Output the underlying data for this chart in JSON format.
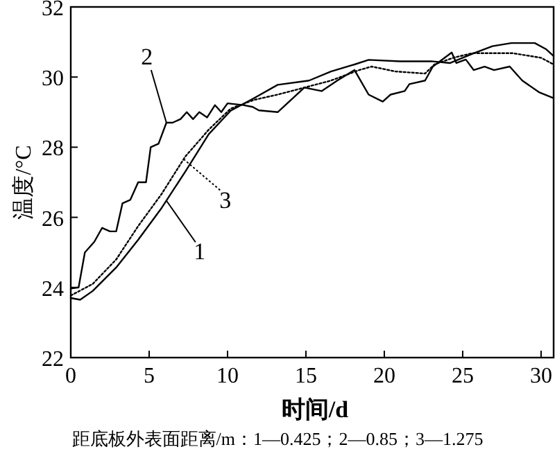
{
  "chart_data": {
    "type": "line",
    "xlabel": "时间/d",
    "ylabel": "温度/°C",
    "xlim": [
      0,
      30.8
    ],
    "xticks": [
      0,
      5,
      10,
      15,
      20,
      25,
      30
    ],
    "ylim": [
      22,
      32
    ],
    "yticks": [
      22,
      24,
      26,
      28,
      30,
      32
    ],
    "grid": false,
    "legend": "left",
    "marker": "none",
    "series": [
      {
        "name": "1",
        "color": "#000000",
        "line_style": "solid",
        "x": [
          0,
          0.6,
          1.4,
          2.9,
          4.3,
          5.8,
          7.3,
          8.8,
          10.2,
          11.7,
          13.2,
          15.2,
          16.6,
          18.1,
          19,
          21,
          23,
          24.2,
          25.7,
          26.9,
          28.1,
          29.6,
          30.3,
          30.8
        ],
        "values": [
          23.7,
          23.65,
          23.9,
          24.57,
          25.36,
          26.27,
          27.3,
          28.37,
          29.04,
          29.4,
          29.78,
          29.9,
          30.16,
          30.36,
          30.49,
          30.45,
          30.45,
          30.4,
          30.68,
          30.88,
          30.97,
          30.97,
          30.8,
          30.6
        ]
      },
      {
        "name": "2",
        "color": "#000000",
        "line_style": "solid",
        "x": [
          0,
          0.5,
          0.9,
          1.5,
          2,
          2.5,
          2.9,
          3.3,
          3.8,
          4.3,
          4.8,
          5.1,
          5.6,
          6.1,
          6.5,
          7,
          7.4,
          7.8,
          8.2,
          8.7,
          9.2,
          9.6,
          10,
          11,
          11.6,
          12,
          13.2,
          14.9,
          16,
          17,
          18.1,
          19,
          19.9,
          20.4,
          21.3,
          21.6,
          22.6,
          23.1,
          24.3,
          24.6,
          25.2,
          25.7,
          26.4,
          27,
          28,
          28.8,
          29.9,
          30.8
        ],
        "values": [
          23.97,
          24.0,
          25.0,
          25.3,
          25.7,
          25.6,
          25.6,
          26.4,
          26.5,
          27.0,
          27.0,
          28.0,
          28.1,
          28.7,
          28.7,
          28.8,
          29.0,
          28.8,
          29.0,
          28.85,
          29.2,
          29.0,
          29.25,
          29.2,
          29.15,
          29.05,
          29.0,
          29.7,
          29.6,
          29.9,
          30.2,
          29.5,
          29.3,
          29.5,
          29.6,
          29.8,
          29.9,
          30.3,
          30.7,
          30.4,
          30.5,
          30.2,
          30.3,
          30.2,
          30.3,
          29.9,
          29.56,
          29.4
        ]
      },
      {
        "name": "3",
        "color": "#000000",
        "line_style": "dotted",
        "x": [
          0,
          1.4,
          2.9,
          4.3,
          5.8,
          7.3,
          8.8,
          10.2,
          11.7,
          13.2,
          14.9,
          16.6,
          18.4,
          19.2,
          20.7,
          22.6,
          23.2,
          24.4,
          25.6,
          28.2,
          30,
          30.8
        ],
        "values": [
          23.77,
          24.1,
          24.8,
          25.75,
          26.67,
          27.73,
          28.5,
          29.1,
          29.35,
          29.5,
          29.7,
          29.9,
          30.2,
          30.3,
          30.16,
          30.1,
          30.36,
          30.55,
          30.68,
          30.68,
          30.55,
          30.36
        ]
      }
    ],
    "annotations": [
      "距底板外表面距离/m：1—0.425；2—0.85；3—1.275"
    ]
  }
}
